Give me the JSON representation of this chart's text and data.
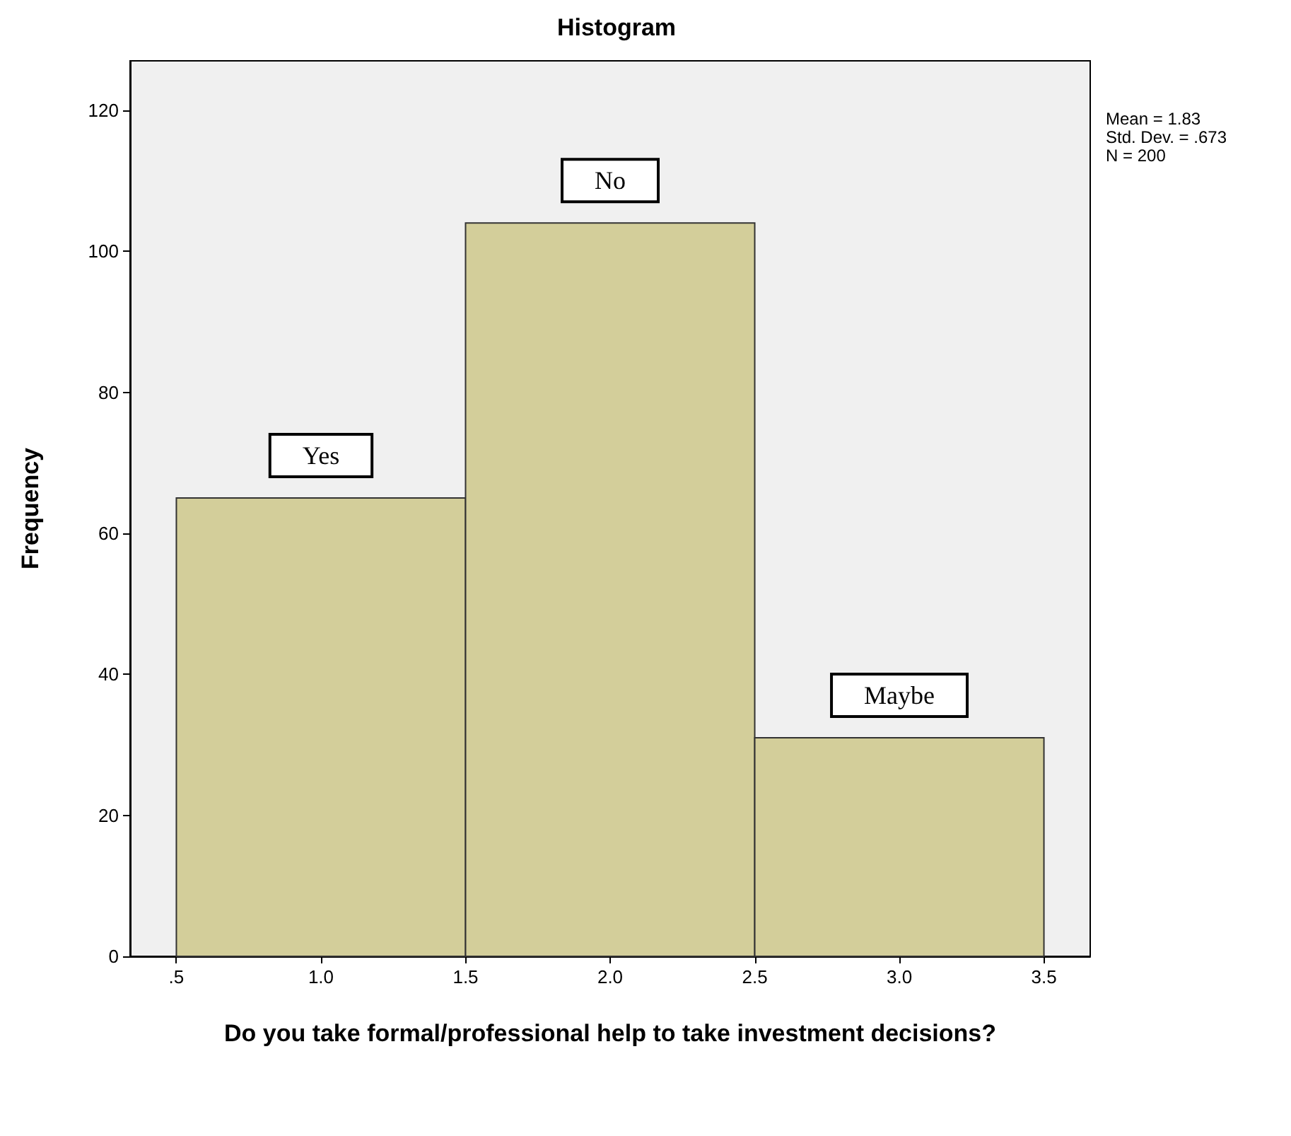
{
  "chart_data": {
    "type": "histogram",
    "title": "Histogram",
    "xlabel": "Do you take formal/professional help to take investment decisions?",
    "ylabel": "Frequency",
    "bins": [
      0.5,
      1.5,
      2.5,
      3.5
    ],
    "values": [
      65,
      104,
      31
    ],
    "color": "#d3ce9a",
    "xlim": [
      0.34,
      3.66
    ],
    "xticks": [
      {
        "value": 0.5,
        "label": ".5"
      },
      {
        "value": 1.0,
        "label": "1.0"
      },
      {
        "value": 1.5,
        "label": "1.5"
      },
      {
        "value": 2.0,
        "label": "2.0"
      },
      {
        "value": 2.5,
        "label": "2.5"
      },
      {
        "value": 3.0,
        "label": "3.0"
      },
      {
        "value": 3.5,
        "label": "3.5"
      }
    ],
    "ylim": [
      0,
      127
    ],
    "yticks": [
      0,
      20,
      40,
      60,
      80,
      100,
      120
    ],
    "grid": false,
    "annotations": [
      "Mean = 1.83",
      "Std. Dev. = .673",
      "N = 200",
      {
        "text": "Yes",
        "x": 1.0,
        "y": 65
      },
      {
        "text": "No",
        "x": 2.0,
        "y": 104
      },
      {
        "text": "Maybe",
        "x": 3.0,
        "y": 31
      }
    ]
  }
}
